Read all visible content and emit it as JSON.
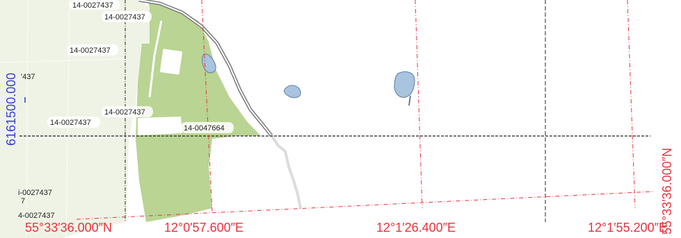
{
  "map": {
    "colors": {
      "field": "#eef3e6",
      "forest": "#b9d493",
      "water": "#a8c4de",
      "water_edge": "#5f7f9a",
      "road": "#7a7a7a",
      "path": "#dcdcdc",
      "grid_black": "#222222",
      "grid_red": "#e8323c",
      "coord_blue": "#3a3ad6"
    },
    "parcel_labels": [
      "14-0027437",
      "14-0027437",
      "14-0027437",
      "'437",
      "14-0027437",
      "14-0027437",
      "14-0047664",
      "i-0027437",
      "7",
      "4-0027437"
    ],
    "grid_coordinates": {
      "left_vertical_blue": "6161500.000",
      "bottom_lat_left": "55°33′36.000″N",
      "bottom_lon_1": "12°0′57.600″E",
      "bottom_lon_2": "12°1′26.400″E",
      "bottom_lon_3": "12°1′55.200″E",
      "right_vertical_lat": "55°33′36.000″N"
    }
  }
}
